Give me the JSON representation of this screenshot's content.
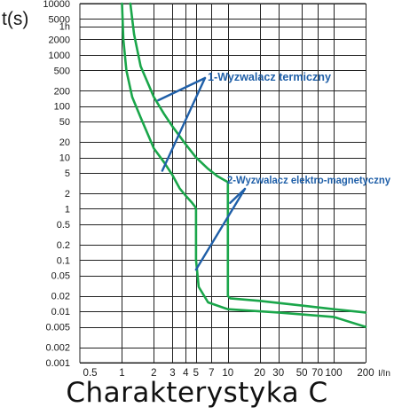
{
  "chart_data": {
    "type": "line",
    "title": "Charakterystyka C",
    "ylabel": "t(s)",
    "xlabel": "I/In",
    "x_scale": "log",
    "y_scale": "log",
    "xlim": [
      0.4,
      200
    ],
    "ylim": [
      0.001,
      10000
    ],
    "grid": true,
    "y_ticks": [
      {
        "value": 10000,
        "label": "10000"
      },
      {
        "value": 5000,
        "label": "5000"
      },
      {
        "value": 3600,
        "label": "1h"
      },
      {
        "value": 2000,
        "label": "2000"
      },
      {
        "value": 1000,
        "label": "1000"
      },
      {
        "value": 500,
        "label": "500"
      },
      {
        "value": 200,
        "label": "200"
      },
      {
        "value": 100,
        "label": "100"
      },
      {
        "value": 50,
        "label": "50"
      },
      {
        "value": 20,
        "label": "20"
      },
      {
        "value": 10,
        "label": "10"
      },
      {
        "value": 5,
        "label": "5"
      },
      {
        "value": 2,
        "label": "2"
      },
      {
        "value": 1,
        "label": "1"
      },
      {
        "value": 0.5,
        "label": "0.5"
      },
      {
        "value": 0.2,
        "label": "0.2"
      },
      {
        "value": 0.1,
        "label": "0.1"
      },
      {
        "value": 0.05,
        "label": "0.05"
      },
      {
        "value": 0.02,
        "label": "0.02"
      },
      {
        "value": 0.01,
        "label": "0.01"
      },
      {
        "value": 0.005,
        "label": "0.005"
      },
      {
        "value": 0.002,
        "label": "0.002"
      },
      {
        "value": 0.001,
        "label": "0.001"
      }
    ],
    "x_grid": [
      1,
      2,
      3,
      4,
      5,
      7,
      10,
      20,
      30,
      50,
      70,
      100,
      200
    ],
    "x_ticks": [
      {
        "value": 0.5,
        "label": "0.5"
      },
      {
        "value": 1,
        "label": "1"
      },
      {
        "value": 2,
        "label": "2"
      },
      {
        "value": 3,
        "label": "3"
      },
      {
        "value": 4,
        "label": "4"
      },
      {
        "value": 5,
        "label": "5"
      },
      {
        "value": 7,
        "label": "7"
      },
      {
        "value": 10,
        "label": "10"
      },
      {
        "value": 20,
        "label": "20"
      },
      {
        "value": 30,
        "label": "30"
      },
      {
        "value": 50,
        "label": "50"
      },
      {
        "value": 70,
        "label": "70"
      },
      {
        "value": 100,
        "label": "100"
      },
      {
        "value": 200,
        "label": "200"
      }
    ],
    "series": [
      {
        "color": "#1aa64a",
        "points": [
          [
            1.0,
            10000
          ],
          [
            1.03,
            2000
          ],
          [
            1.1,
            500
          ],
          [
            1.25,
            150
          ],
          [
            1.5,
            60
          ],
          [
            2.0,
            15
          ],
          [
            2.5,
            8
          ],
          [
            3.0,
            4.5
          ],
          [
            3.5,
            2.5
          ],
          [
            4.0,
            1.8
          ],
          [
            4.6,
            1.3
          ],
          [
            4.9,
            1.1
          ],
          [
            5.0,
            1.0
          ],
          [
            5.0,
            0.1
          ],
          [
            5.3,
            0.03
          ],
          [
            6.5,
            0.015
          ],
          [
            10,
            0.011
          ],
          [
            30,
            0.0095
          ],
          [
            100,
            0.0078
          ],
          [
            200,
            0.005
          ]
        ]
      },
      {
        "color": "#1aa64a",
        "points": [
          [
            1.2,
            10000
          ],
          [
            1.3,
            2500
          ],
          [
            1.5,
            600
          ],
          [
            2.0,
            150
          ],
          [
            2.5,
            70
          ],
          [
            3.0,
            40
          ],
          [
            4.0,
            18
          ],
          [
            5.0,
            10
          ],
          [
            6.5,
            6
          ],
          [
            8.0,
            4.3
          ],
          [
            10,
            3.3
          ],
          [
            10,
            0.02
          ],
          [
            10.5,
            0.018
          ],
          [
            20,
            0.016
          ],
          [
            50,
            0.013
          ],
          [
            100,
            0.011
          ],
          [
            200,
            0.0095
          ]
        ]
      }
    ],
    "annotations": [
      {
        "text": "1-Wyzwalacz termiczny",
        "targets": [
          [
            2.2,
            130
          ],
          [
            2.4,
            5.5
          ]
        ]
      },
      {
        "text": "2-Wyzwalacz elektro-magnetyczny",
        "targets": [
          [
            10.5,
            1.3
          ],
          [
            5.0,
            0.065
          ]
        ]
      }
    ],
    "annotation_color": "#1f5fa8"
  }
}
